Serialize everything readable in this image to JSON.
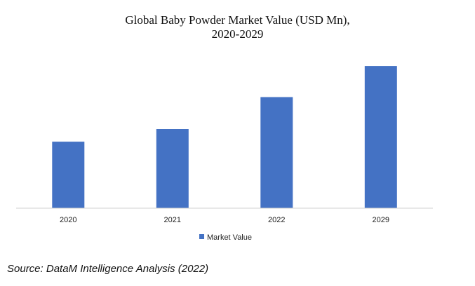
{
  "chart_data": {
    "type": "bar",
    "title_lines": [
      "Global Baby Powder Market Value (USD Mn),",
      "2020-2029"
    ],
    "categories": [
      "2020",
      "2021",
      "2022",
      "2029"
    ],
    "series": [
      {
        "name": "Market Value",
        "values": [
          94,
          112,
          157,
          201
        ],
        "color": "#4472C4"
      }
    ],
    "ylim": [
      0,
      215
    ],
    "y_axis_visible": false,
    "grid": false,
    "legend_position": "bottom-center",
    "xlabel": "",
    "ylabel": ""
  },
  "source": "Source: DataM Intelligence Analysis (2022)"
}
